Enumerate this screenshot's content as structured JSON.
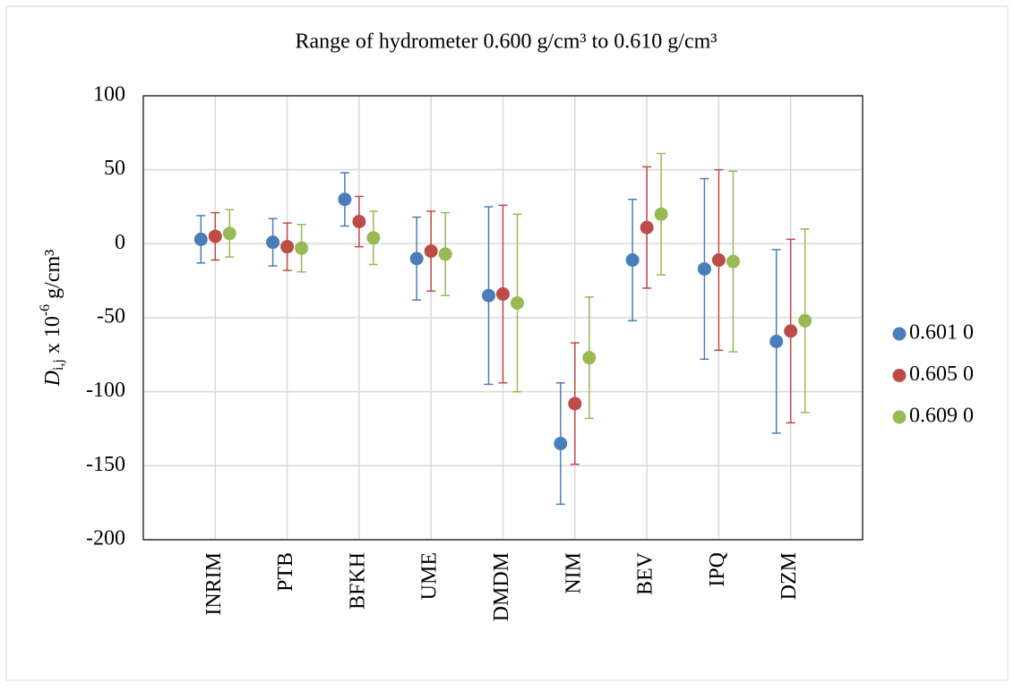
{
  "chart_data": {
    "type": "errorbar",
    "title": "Range of hydrometer 0.600 g/cm³ to 0.610 g/cm³",
    "ylabel": {
      "symbol": "D",
      "subscript": "i,j",
      "text": " x 10",
      "exponent": "-6",
      "unit": " g/cm³"
    },
    "categories": [
      "INRIM",
      "PTB",
      "BFKH",
      "UME",
      "DMDM",
      "NIM",
      "BEV",
      "IPQ",
      "DZM"
    ],
    "series": [
      {
        "name": "0.601 0",
        "color": "#4a7ebb",
        "values": [
          3,
          1,
          30,
          -10,
          -35,
          -135,
          -11,
          -17,
          -66
        ],
        "errors": [
          16,
          16,
          18,
          28,
          60,
          41,
          41,
          61,
          62
        ]
      },
      {
        "name": "0.605 0",
        "color": "#be4b48",
        "values": [
          5,
          -2,
          15,
          -5,
          -34,
          -108,
          11,
          -11,
          -59
        ],
        "errors": [
          16,
          16,
          17,
          27,
          60,
          41,
          41,
          61,
          62
        ]
      },
      {
        "name": "0.609 0",
        "color": "#98b954",
        "values": [
          7,
          -3,
          4,
          -7,
          -40,
          -77,
          20,
          -12,
          -52
        ],
        "errors": [
          16,
          16,
          18,
          28,
          60,
          41,
          41,
          61,
          62
        ]
      }
    ],
    "ylim": [
      -200,
      100
    ],
    "yticks": [
      -200,
      -150,
      -100,
      -50,
      0,
      50,
      100
    ],
    "grid": true,
    "legend": "right"
  }
}
